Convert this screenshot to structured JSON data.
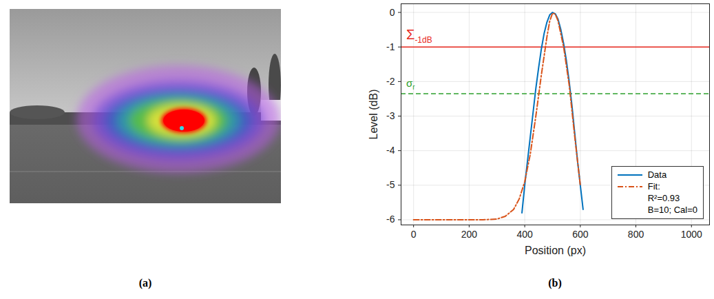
{
  "panel_labels": [
    "(a)",
    "(b)"
  ],
  "chart_data": {
    "type": "line",
    "xlabel": "Position (px)",
    "ylabel": "Level (dB)",
    "xlim": [
      -45,
      1065
    ],
    "xticks": [
      0,
      200,
      400,
      600,
      800,
      1000
    ],
    "ylim": [
      -6.15,
      0.25
    ],
    "yticks": [
      0,
      -1,
      -2,
      -3,
      -4,
      -5,
      -6
    ],
    "grid": true,
    "legend": "lower right",
    "series": [
      {
        "name": "Data",
        "color": "#0072bd",
        "line_style": "solid",
        "x": [
          390,
          400,
          410,
          420,
          430,
          440,
          450,
          460,
          470,
          480,
          490,
          500,
          510,
          520,
          530,
          540,
          550,
          560,
          570,
          580,
          590,
          600,
          610
        ],
        "values": [
          -5.8,
          -5.0,
          -4.3,
          -3.6,
          -2.9,
          -2.2,
          -1.6,
          -1.05,
          -0.6,
          -0.28,
          -0.07,
          0,
          -0.04,
          -0.2,
          -0.5,
          -0.9,
          -1.4,
          -2.0,
          -2.7,
          -3.5,
          -4.3,
          -5.0,
          -5.7
        ]
      },
      {
        "name": "Fit:",
        "color": "#d95319",
        "line_style": "dashdot",
        "x": [
          0,
          100,
          200,
          250,
          300,
          330,
          360,
          380,
          400,
          420,
          440,
          460,
          480,
          490,
          500,
          510,
          520,
          540,
          560,
          580,
          600
        ],
        "values": [
          -6,
          -6,
          -6,
          -6,
          -5.98,
          -5.9,
          -5.7,
          -5.4,
          -4.9,
          -4.1,
          -3.0,
          -1.8,
          -0.7,
          -0.25,
          -0.02,
          -0.05,
          -0.25,
          -1.0,
          -2.1,
          -3.6,
          -5.0
        ]
      }
    ],
    "legend_notes": [
      "R²=0.93",
      "B=10; Cal=0"
    ],
    "hlines": [
      {
        "value": -1,
        "label": "Σ",
        "label_sub": "-1dB",
        "color": "#e8281e",
        "line_style": "solid"
      },
      {
        "value": -2.35,
        "label": "σ",
        "label_sub": "r",
        "color": "#2ca02c",
        "line_style": "dashed"
      }
    ]
  }
}
